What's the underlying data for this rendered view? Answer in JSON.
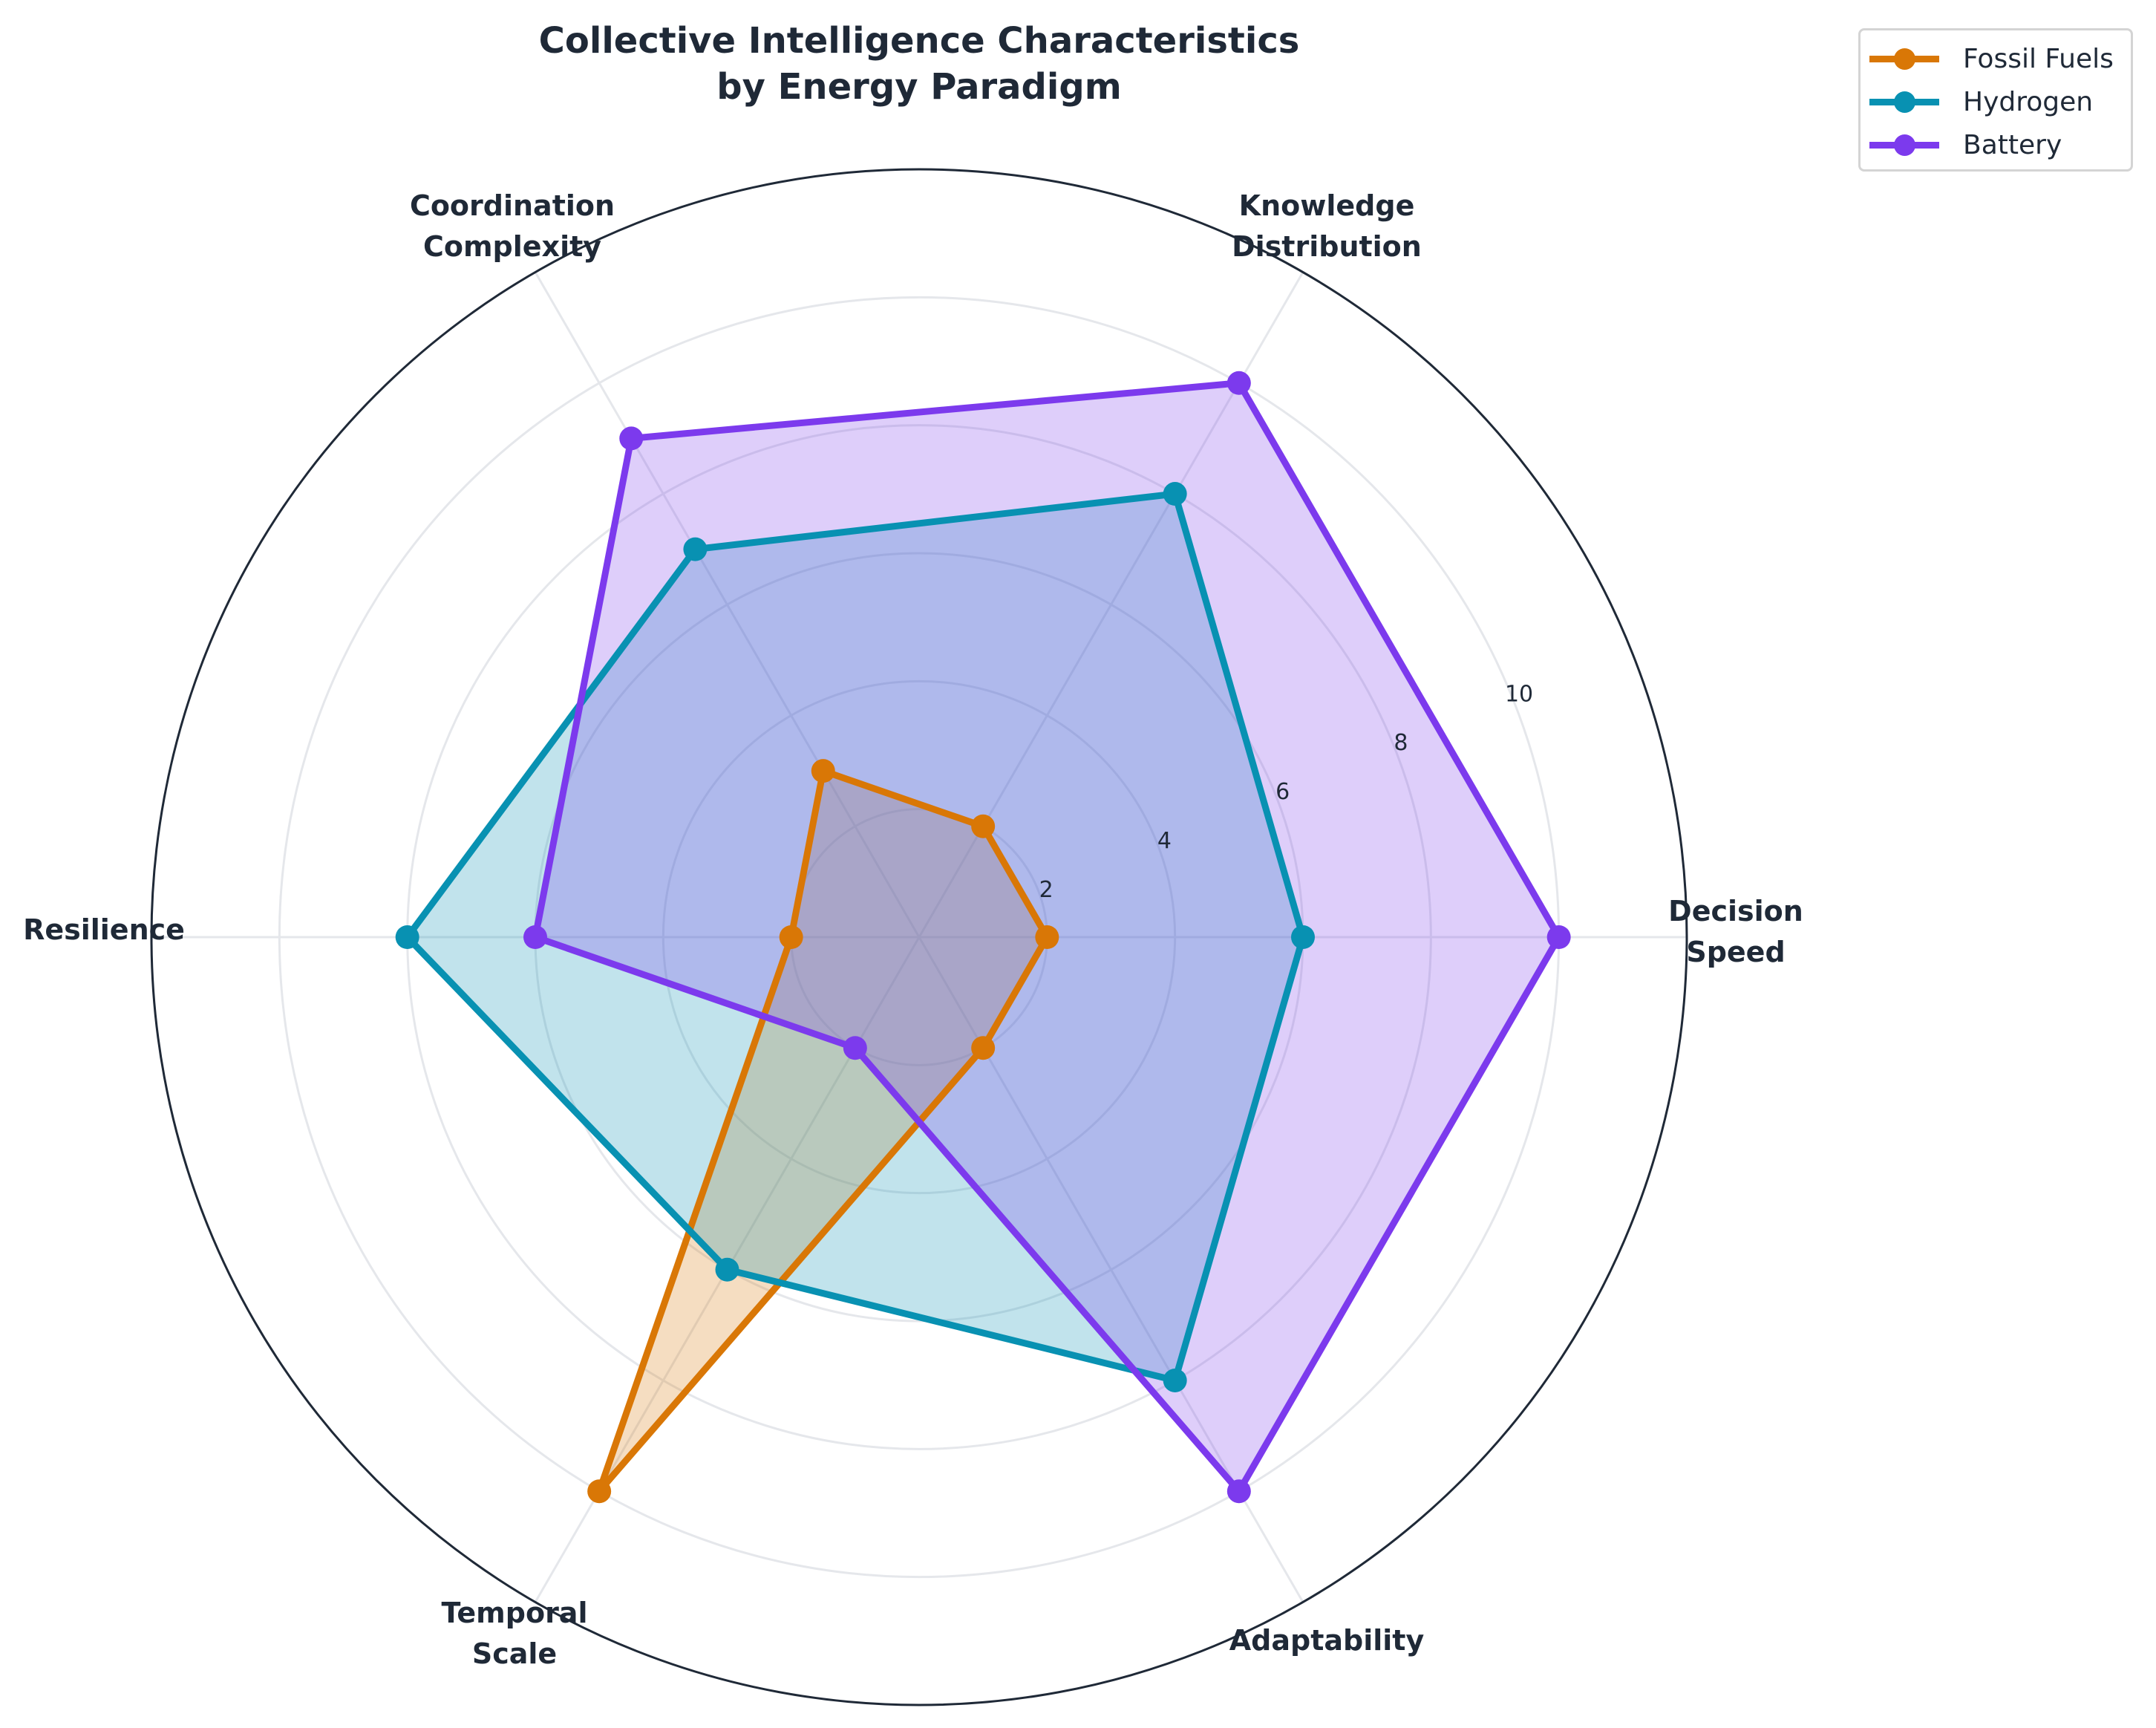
{
  "title": {
    "line1": "Collective Intelligence Characteristics",
    "line2": "by Energy Paradigm"
  },
  "legend": {
    "items": [
      {
        "label": "Fossil Fuels",
        "color": "#d97706"
      },
      {
        "label": "Hydrogen",
        "color": "#0891b2"
      },
      {
        "label": "Battery",
        "color": "#7c3aed"
      }
    ]
  },
  "axes": {
    "labels": [
      {
        "line1": "Decision",
        "line2": "Speed"
      },
      {
        "line1": "Knowledge",
        "line2": "Distribution"
      },
      {
        "line1": "Coordination",
        "line2": "Complexity"
      },
      {
        "line1": "Resilience",
        "line2": ""
      },
      {
        "line1": "Temporal",
        "line2": "Scale"
      },
      {
        "line1": "Adaptability",
        "line2": ""
      }
    ],
    "radial_ticks": [
      "2",
      "4",
      "6",
      "8",
      "10"
    ]
  },
  "chart_data": {
    "type": "radar",
    "title": "Collective Intelligence Characteristics by Energy Paradigm",
    "categories": [
      "Decision Speed",
      "Knowledge Distribution",
      "Coordination Complexity",
      "Resilience",
      "Temporal Scale",
      "Adaptability"
    ],
    "series": [
      {
        "name": "Fossil Fuels",
        "color": "#d97706",
        "values": [
          2,
          2,
          3,
          2,
          10,
          2
        ]
      },
      {
        "name": "Hydrogen",
        "color": "#0891b2",
        "values": [
          6,
          8,
          7,
          8,
          6,
          8
        ]
      },
      {
        "name": "Battery",
        "color": "#7c3aed",
        "values": [
          10,
          10,
          9,
          6,
          2,
          10
        ]
      }
    ],
    "rlim": [
      0,
      12
    ],
    "rticks": [
      2,
      4,
      6,
      8,
      10
    ],
    "grid": true,
    "legend_position": "upper right (outside)",
    "fill_alpha": 0.25
  }
}
